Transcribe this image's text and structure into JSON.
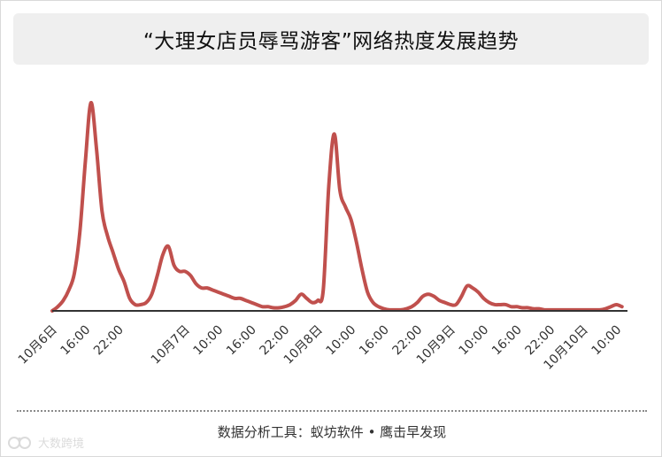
{
  "header": {
    "title": "“大理女店员辱骂游客”网络热度发展趋势"
  },
  "footer": {
    "source": "数据分析工具：蚁坊软件 • 鹰击早发现"
  },
  "watermark": {
    "text": "大数跨境",
    "icon": "brand-logo-icon"
  },
  "colors": {
    "line": "#c0504d",
    "baseline": "#333333",
    "ticks": "#333333"
  },
  "chart_data": {
    "type": "line",
    "title": "“大理女店员辱骂游客”网络热度发展趋势",
    "xlabel": "",
    "ylabel": "",
    "grid": false,
    "legend": "none",
    "x_tick_labels": [
      "10月6日",
      "16:00",
      "22:00",
      "10月7日",
      "10:00",
      "16:00",
      "22:00",
      "10月8日",
      "10:00",
      "16:00",
      "22:00",
      "10月9日",
      "10:00",
      "16:00",
      "22:00",
      "10月10日",
      "10:00"
    ],
    "x_tick_hours": [
      0,
      6,
      12,
      24,
      30,
      36,
      42,
      48,
      54,
      60,
      66,
      72,
      78,
      84,
      90,
      96,
      102
    ],
    "xlim": [
      0,
      104
    ],
    "ylim": [
      0,
      100
    ],
    "series": [
      {
        "x": [
          0,
          1,
          2,
          3,
          4,
          5,
          6,
          7,
          8,
          9,
          10,
          11,
          12,
          13,
          14,
          15,
          16,
          17,
          18,
          19,
          20,
          21,
          22,
          23,
          24,
          25,
          26,
          27,
          28,
          29,
          30,
          31,
          32,
          33,
          34,
          35,
          36,
          37,
          38,
          39,
          40,
          41,
          42,
          43,
          44,
          45,
          46,
          47,
          48,
          49,
          50,
          51,
          52,
          53,
          54,
          55,
          56,
          57,
          58,
          59,
          60,
          61,
          62,
          63,
          64,
          65,
          66,
          67,
          68,
          69,
          70,
          71,
          72,
          73,
          74,
          75,
          76,
          77,
          78,
          79,
          80,
          81,
          82,
          83,
          84,
          85,
          86,
          87,
          88,
          89,
          90,
          91,
          92,
          93,
          94,
          95,
          96,
          97,
          98,
          99,
          100,
          101,
          102,
          103
        ],
        "values": [
          0,
          2,
          5,
          10,
          18,
          38,
          72,
          100,
          78,
          48,
          36,
          28,
          20,
          14,
          6,
          3,
          3,
          4,
          8,
          17,
          27,
          31,
          22,
          19,
          19,
          17,
          13,
          11,
          11,
          10,
          9,
          8,
          7,
          6,
          6,
          5,
          4,
          3,
          2,
          2,
          1.5,
          1.5,
          2,
          3,
          5,
          8,
          6,
          4,
          5,
          10,
          60,
          85,
          58,
          50,
          44,
          33,
          20,
          9,
          4,
          2,
          1,
          0.5,
          0.5,
          0.5,
          1,
          2,
          4,
          7,
          8,
          7,
          5,
          4,
          3,
          3,
          7,
          12,
          11,
          9,
          6,
          4,
          3,
          3,
          3,
          2,
          2,
          1.5,
          1.5,
          1,
          1,
          0.5,
          0.5,
          0.5,
          0.5,
          0.5,
          0.5,
          0.5,
          0.5,
          0.5,
          0.5,
          0.5,
          1,
          2,
          3,
          2
        ]
      }
    ]
  }
}
